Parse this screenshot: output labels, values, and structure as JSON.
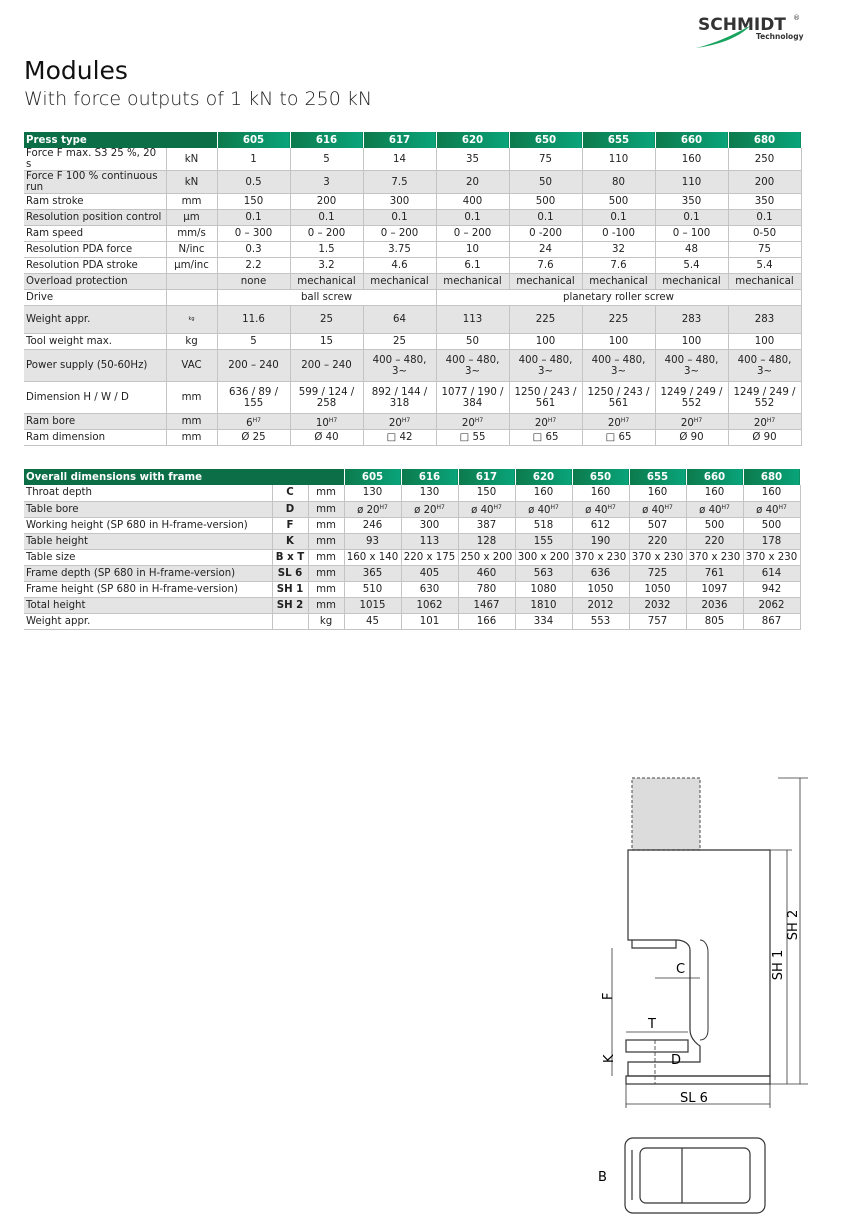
{
  "logo": {
    "name": "SCHMIDT",
    "reg": "®",
    "sub": "Technology"
  },
  "title": "Modules",
  "subtitle": "With force outputs of 1 kN to 250 kN",
  "table1": {
    "header": [
      "Press type",
      "605",
      "616",
      "617",
      "620",
      "650",
      "655",
      "660",
      "680"
    ],
    "rows": [
      {
        "label": "Force F max. S3 25 %, 20 s",
        "unit": "kN",
        "cells": [
          "1",
          "5",
          "14",
          "35",
          "75",
          "110",
          "160",
          "250"
        ]
      },
      {
        "label": "Force F 100 % continuous run",
        "unit": "kN",
        "cells": [
          "0.5",
          "3",
          "7.5",
          "20",
          "50",
          "80",
          "110",
          "200"
        ]
      },
      {
        "label": "Ram stroke",
        "unit": "mm",
        "cells": [
          "150",
          "200",
          "300",
          "400",
          "500",
          "500",
          "350",
          "350"
        ]
      },
      {
        "label": "Resolution position control",
        "unit": "µm",
        "cells": [
          "0.1",
          "0.1",
          "0.1",
          "0.1",
          "0.1",
          "0.1",
          "0.1",
          "0.1"
        ]
      },
      {
        "label": "Ram speed",
        "unit": "mm/s",
        "cells": [
          "0 – 300",
          "0 – 200",
          "0 – 200",
          "0 – 200",
          "0 -200",
          "0 -100",
          "0 – 100",
          "0-50"
        ]
      },
      {
        "label": "Resolution PDA force",
        "unit": "N/inc",
        "cells": [
          "0.3",
          "1.5",
          "3.75",
          "10",
          "24",
          "32",
          "48",
          "75"
        ]
      },
      {
        "label": "Resolution PDA stroke",
        "unit": "µm/inc",
        "cells": [
          "2.2",
          "3.2",
          "4.6",
          "6.1",
          "7.6",
          "7.6",
          "5.4",
          "5.4"
        ]
      },
      {
        "label": "Overload protection",
        "unit": null,
        "cells": [
          "none",
          "mechanical",
          "mechanical",
          "mechanical",
          "mechanical",
          "mechanical",
          "mechanical",
          "mechanical"
        ]
      },
      {
        "label": "Drive",
        "unit": null,
        "cells": [
          "ball screw",
          "planetary roller screw"
        ]
      },
      {
        "label": "Weight appr.",
        "unit": "kg",
        "cells": [
          "11.6",
          "25",
          "64",
          "113",
          "225",
          "225",
          "283",
          "283"
        ]
      },
      {
        "label": "Tool weight max.",
        "unit": "kg",
        "cells": [
          "5",
          "15",
          "25",
          "50",
          "100",
          "100",
          "100",
          "100"
        ]
      },
      {
        "label": "Power supply  (50-60Hz)",
        "unit": "VAC",
        "cells": [
          "200 – 240",
          "200 – 240",
          "400 – 480, 3~",
          "400 – 480, 3~",
          "400 – 480, 3~",
          "400 – 480, 3~",
          "400 – 480, 3~",
          "400 – 480, 3~"
        ]
      },
      {
        "label": "Dimension H / W / D",
        "unit": "mm",
        "cells": [
          "636 / 89 / 155",
          "599 / 124 / 258",
          "892 / 144 / 318",
          "1077 / 190 / 384",
          "1250 / 243 / 561",
          "1250 / 243 / 561",
          "1249 / 249 / 552",
          "1249 / 249 / 552"
        ]
      },
      {
        "label": "Ram bore",
        "unit": "mm",
        "cells": [
          {
            "text": "6",
            "sup": "H7"
          },
          {
            "text": "10",
            "sup": "H7"
          },
          {
            "text": "20",
            "sup": "H7"
          },
          {
            "text": "20",
            "sup": "H7"
          },
          {
            "text": "20",
            "sup": "H7"
          },
          {
            "text": "20",
            "sup": "H7"
          },
          {
            "text": "20",
            "sup": "H7"
          },
          {
            "text": "20",
            "sup": "H7"
          }
        ]
      },
      {
        "label": "Ram dimension",
        "unit": "mm",
        "cells": [
          "Ø 25",
          "Ø 40",
          "□ 42",
          "□ 55",
          "□ 65",
          "□ 65",
          "Ø 90",
          "Ø 90"
        ]
      }
    ]
  },
  "table2": {
    "header": [
      "Overall dimensions with frame",
      "605",
      "616",
      "617",
      "620",
      "650",
      "655",
      "660",
      "680"
    ],
    "rows": [
      {
        "label": "Throat depth",
        "symbol": "C",
        "unit": "mm",
        "cells": [
          "130",
          "130",
          "150",
          "160",
          "160",
          "160",
          "160",
          "160"
        ]
      },
      {
        "label": "Table bore",
        "symbol": "D",
        "unit": "mm",
        "cells": [
          {
            "text": "ø 20",
            "sup": "H7"
          },
          {
            "text": "ø 20",
            "sup": "H7"
          },
          {
            "text": "ø 40",
            "sup": "H7"
          },
          {
            "text": "ø 40",
            "sup": "H7"
          },
          {
            "text": "ø 40",
            "sup": "H7"
          },
          {
            "text": "ø 40",
            "sup": "H7"
          },
          {
            "text": "ø 40",
            "sup": "H7"
          },
          {
            "text": "ø 40",
            "sup": "H7"
          }
        ]
      },
      {
        "label": "Working height  (SP 680 in H-frame-version)",
        "symbol": "F",
        "unit": "mm",
        "cells": [
          "246",
          "300",
          "387",
          "518",
          "612",
          "507",
          "500",
          "500"
        ]
      },
      {
        "label": "Table height",
        "symbol": "K",
        "unit": "mm",
        "cells": [
          "93",
          "113",
          "128",
          "155",
          "190",
          "220",
          "220",
          "178"
        ]
      },
      {
        "label": "Table size",
        "symbol": "B x T",
        "unit": "mm",
        "cells": [
          "160 x 140",
          "220 x 175",
          "250 x 200",
          "300 x 200",
          "370 x 230",
          "370 x 230",
          "370 x 230",
          "370 x 230"
        ]
      },
      {
        "label": "Frame depth (SP 680 in H-frame-version)",
        "symbol": "SL 6",
        "unit": "mm",
        "cells": [
          "365",
          "405",
          "460",
          "563",
          "636",
          "725",
          "761",
          "614"
        ]
      },
      {
        "label": "Frame height (SP 680 in H-frame-version)",
        "symbol": "SH 1",
        "unit": "mm",
        "cells": [
          "510",
          "630",
          "780",
          "1080",
          "1050",
          "1050",
          "1097",
          "942"
        ]
      },
      {
        "label": "Total height",
        "symbol": "SH 2",
        "unit": "mm",
        "cells": [
          "1015",
          "1062",
          "1467",
          "1810",
          "2012",
          "2032",
          "2036",
          "2062"
        ]
      },
      {
        "label": "Weight appr.",
        "symbol": null,
        "unit": "kg",
        "cells": [
          "45",
          "101",
          "166",
          "334",
          "553",
          "757",
          "805",
          "867"
        ]
      }
    ]
  },
  "diagram": {
    "labels": {
      "c": "C",
      "f": "F",
      "t": "T",
      "k": "K",
      "d": "D",
      "sh2": "SH 2",
      "sh1": "SH 1",
      "sl6": "SL 6",
      "b": "B"
    }
  }
}
